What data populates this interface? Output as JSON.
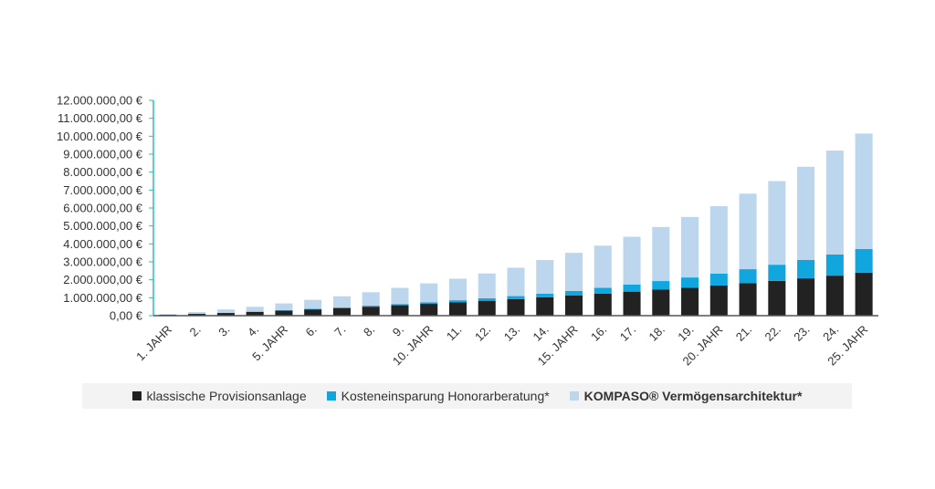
{
  "chart_data": {
    "type": "bar",
    "stacked": true,
    "title": "",
    "xlabel": "",
    "ylabel": "",
    "ylim": [
      0,
      12000000
    ],
    "yticks": [
      0,
      1000000,
      2000000,
      3000000,
      4000000,
      5000000,
      6000000,
      7000000,
      8000000,
      9000000,
      10000000,
      11000000,
      12000000
    ],
    "ytick_labels": [
      "0,00 €",
      "1.000.000,00 €",
      "2.000.000,00 €",
      "3.000.000,00 €",
      "4.000.000,00 €",
      "5.000.000,00 €",
      "6.000.000,00 €",
      "7.000.000,00 €",
      "8.000.000,00 €",
      "9.000.000,00 €",
      "10.000.000,00 €",
      "11.000.000,00 €",
      "12.000.000,00 €"
    ],
    "categories": [
      "1. JAHR",
      "2.",
      "3.",
      "4.",
      "5. JAHR",
      "6.",
      "7.",
      "8.",
      "9.",
      "10. JAHR",
      "11.",
      "12.",
      "13.",
      "14.",
      "15. JAHR",
      "16.",
      "17.",
      "18.",
      "19.",
      "20. JAHR",
      "21.",
      "22.",
      "23.",
      "24.",
      "25. JAHR"
    ],
    "grid": false,
    "legend_position": "bottom",
    "series": [
      {
        "name": "klassische Provisionsanlage",
        "color": "#222222",
        "values": [
          50000,
          100000,
          150000,
          210000,
          280000,
          350000,
          420000,
          500000,
          580000,
          660000,
          750000,
          830000,
          920000,
          1020000,
          1120000,
          1230000,
          1340000,
          1450000,
          1560000,
          1680000,
          1810000,
          1940000,
          2080000,
          2230000,
          2400000
        ]
      },
      {
        "name": "Kosteneinsparung Honorarberatung*",
        "color": "#12a6df",
        "values": [
          2000,
          5000,
          10000,
          15000,
          20000,
          30000,
          40000,
          55000,
          70000,
          90000,
          110000,
          140000,
          170000,
          210000,
          260000,
          320000,
          400000,
          480000,
          570000,
          660000,
          780000,
          900000,
          1030000,
          1180000,
          1320000
        ]
      },
      {
        "name": "KOMPASO® Vermögensarchitektur*",
        "color": "#bcd6ed",
        "values": [
          30000,
          100000,
          190000,
          270000,
          380000,
          500000,
          620000,
          750000,
          900000,
          1050000,
          1200000,
          1380000,
          1580000,
          1870000,
          2120000,
          2350000,
          2660000,
          3010000,
          3370000,
          3760000,
          4210000,
          4660000,
          5190000,
          5790000,
          6430000
        ]
      }
    ]
  }
}
